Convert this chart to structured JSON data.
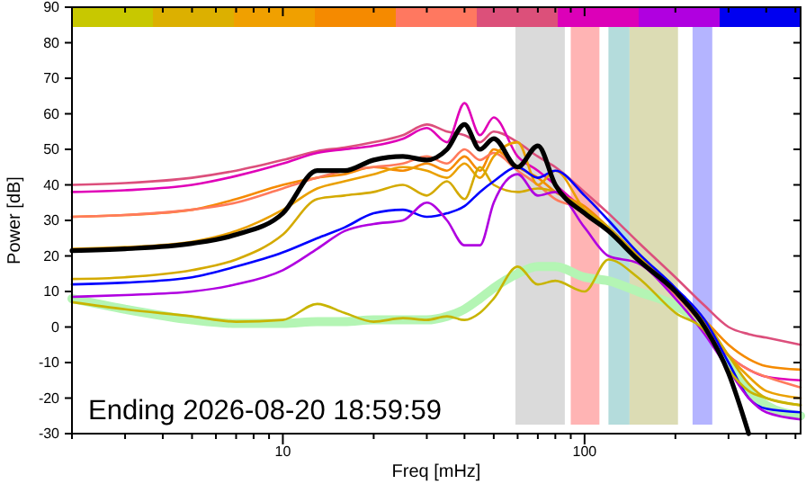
{
  "chart_data": {
    "type": "line",
    "xlabel": "Freq [mHz]",
    "ylabel": "Power [dB]",
    "log": "x",
    "annotations": [
      "Ending 2026-08-20 18:59:59"
    ],
    "x": [
      2,
      3,
      5,
      7,
      10,
      13,
      16,
      20,
      25,
      30,
      35,
      40,
      45,
      50,
      60,
      70,
      80,
      100,
      120,
      150,
      200,
      250,
      300,
      350,
      400,
      520
    ],
    "xlim": [
      2,
      520
    ],
    "ylim": [
      -30,
      90
    ],
    "xticks": [
      {
        "value": 2,
        "label": null
      },
      {
        "value": 3,
        "label": null
      },
      {
        "value": 4,
        "label": null
      },
      {
        "value": 5,
        "label": null
      },
      {
        "value": 6,
        "label": null
      },
      {
        "value": 7,
        "label": null
      },
      {
        "value": 8,
        "label": null
      },
      {
        "value": 9,
        "label": null
      },
      10,
      {
        "value": 20,
        "label": null
      },
      {
        "value": 30,
        "label": null
      },
      {
        "value": 40,
        "label": null
      },
      {
        "value": 50,
        "label": null
      },
      {
        "value": 60,
        "label": null
      },
      {
        "value": 70,
        "label": null
      },
      {
        "value": 80,
        "label": null
      },
      {
        "value": 90,
        "label": null
      },
      100,
      {
        "value": 200,
        "label": null
      },
      {
        "value": 300,
        "label": null
      },
      {
        "value": 400,
        "label": null
      },
      {
        "value": 500,
        "label": null
      }
    ],
    "yticks": [
      -30,
      -20,
      -10,
      0,
      10,
      20,
      30,
      40,
      50,
      60,
      70,
      80,
      90
    ],
    "bands": [
      {
        "axis": "x",
        "from": 59,
        "to": 86,
        "color": "#dadada"
      },
      {
        "axis": "x",
        "from": 90,
        "to": 112,
        "color": "#ffb4b4"
      },
      {
        "axis": "x",
        "from": 120,
        "to": 141,
        "color": "#b4dcdc"
      },
      {
        "axis": "x",
        "from": 141,
        "to": 204,
        "color": "#dcdcb4"
      },
      {
        "axis": "x",
        "from": 228,
        "to": 265,
        "color": "#b4b4ff"
      }
    ],
    "series": [
      {
        "color": "#b4f5b4",
        "values": [
          8,
          5,
          2,
          1,
          1,
          1.5,
          1.5,
          2,
          2,
          2,
          3,
          5,
          8,
          11,
          15,
          17,
          17,
          14,
          13,
          10,
          6,
          0,
          -10,
          -18,
          -22,
          -25
        ]
      },
      {
        "color": "#dc4f7c",
        "values": [
          40,
          40.5,
          42,
          44,
          47,
          49.5,
          50.5,
          52,
          54,
          57,
          55,
          54,
          52,
          55,
          52,
          48,
          45,
          38,
          32,
          24,
          14,
          6,
          0,
          -2,
          -3,
          -5
        ]
      },
      {
        "color": "#e000b8",
        "values": [
          38,
          38.5,
          40,
          42.5,
          46,
          49,
          50,
          51,
          53,
          56,
          52,
          63,
          54,
          59,
          48,
          44,
          40,
          33,
          28,
          20,
          10,
          0,
          -8,
          -12,
          -14,
          -15
        ]
      },
      {
        "color": "#f58a00",
        "values": [
          31,
          31.5,
          33,
          36,
          40,
          42,
          43,
          45,
          44,
          46,
          44,
          48,
          44,
          50,
          45,
          42,
          38,
          34,
          28,
          20,
          10,
          2,
          -5,
          -9,
          -11,
          -12
        ]
      },
      {
        "color": "#ff7a5c",
        "values": [
          31,
          31.5,
          33,
          35,
          39,
          42,
          44,
          45,
          46,
          48,
          46,
          50,
          47,
          49,
          44,
          40,
          36,
          33,
          27,
          19,
          9,
          0,
          -8,
          -12,
          -14,
          -17
        ]
      },
      {
        "color": "#eaa000",
        "values": [
          22,
          22.5,
          24,
          27,
          33,
          39,
          41,
          43,
          45,
          44,
          42,
          46,
          42,
          48,
          52,
          40,
          44,
          33,
          27,
          20,
          10,
          1,
          -8,
          -14,
          -18,
          -20
        ]
      },
      {
        "color": "#d4aa00",
        "values": [
          13.5,
          14,
          16,
          19,
          26,
          36,
          37,
          38,
          40,
          37,
          41,
          36,
          45,
          40,
          38,
          39,
          38,
          33,
          28,
          20,
          10,
          2,
          -8,
          -16,
          -20,
          -22
        ]
      },
      {
        "color": "#0000ff",
        "values": [
          12,
          12.5,
          14,
          17,
          21,
          25,
          28,
          32,
          33,
          31,
          32,
          34,
          38,
          41,
          45,
          42,
          44,
          37,
          30,
          21,
          11,
          2,
          -10,
          -20,
          -23,
          -24
        ]
      },
      {
        "color": "#b000e0",
        "values": [
          8.5,
          9,
          10,
          12,
          16,
          22,
          27,
          29,
          30,
          35,
          30,
          23,
          23,
          35,
          43,
          37,
          38,
          28,
          20,
          18,
          8,
          -2,
          -12,
          -20,
          -24,
          -26
        ]
      },
      {
        "color": "#c8b400",
        "values": [
          7,
          5,
          3,
          1.5,
          2,
          6.5,
          4,
          1.5,
          2.5,
          2,
          3,
          2,
          4,
          8,
          17,
          12,
          13,
          10,
          19,
          14,
          4,
          -1,
          -12,
          -18,
          -20,
          -22
        ]
      },
      {
        "color": "#000000",
        "values": [
          21.5,
          22,
          23.5,
          26,
          32,
          44,
          44,
          47,
          48,
          47,
          50,
          57,
          50,
          53,
          45,
          51,
          40,
          32,
          27,
          19,
          10,
          0,
          -13,
          -30,
          null,
          null
        ]
      }
    ]
  }
}
